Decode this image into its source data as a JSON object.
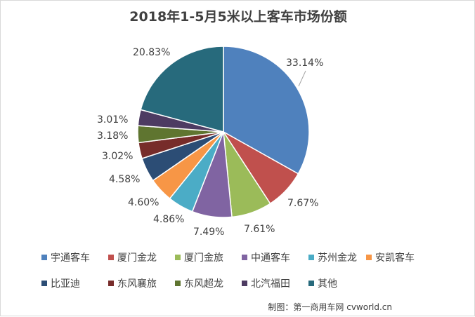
{
  "chart_data": {
    "type": "pie",
    "title": "2018年1-5月5米以上客车市场份额",
    "series": [
      {
        "name": "宇通客车",
        "value": 33.14,
        "label": "33.14%",
        "color": "#4F81BD"
      },
      {
        "name": "厦门金龙",
        "value": 7.67,
        "label": "7.67%",
        "color": "#C0504D"
      },
      {
        "name": "厦门金旅",
        "value": 7.61,
        "label": "7.61%",
        "color": "#9BBB59"
      },
      {
        "name": "中通客车",
        "value": 7.49,
        "label": "7.49%",
        "color": "#8064A2"
      },
      {
        "name": "苏州金龙",
        "value": 4.86,
        "label": "4.86%",
        "color": "#4BACC6"
      },
      {
        "name": "安凯客车",
        "value": 4.6,
        "label": "4.60%",
        "color": "#F79646"
      },
      {
        "name": "比亚迪",
        "value": 4.58,
        "label": "4.58%",
        "color": "#2C4D75"
      },
      {
        "name": "东风襄旅",
        "value": 3.02,
        "label": "3.02%",
        "color": "#772C2A"
      },
      {
        "name": "东风超龙",
        "value": 3.18,
        "label": "3.18%",
        "color": "#5F7530"
      },
      {
        "name": "北汽福田",
        "value": 3.01,
        "label": "3.01%",
        "color": "#4D3B62"
      },
      {
        "name": "其他",
        "value": 20.83,
        "label": "20.83%",
        "color": "#276A7C"
      }
    ],
    "legend_placement": "bottom"
  },
  "credit": "制图：第一商用车网 cvworld.cn"
}
